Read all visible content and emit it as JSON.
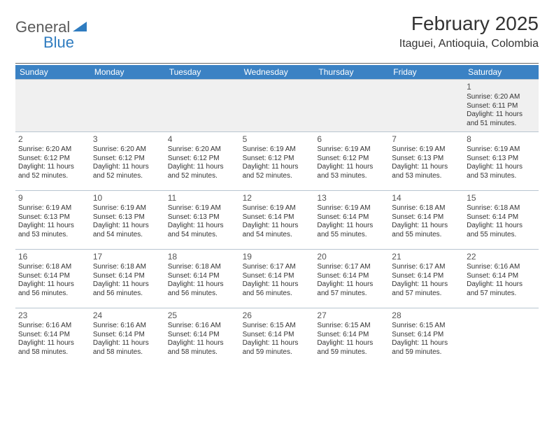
{
  "logo": {
    "general": "General",
    "blue": "Blue"
  },
  "title": {
    "month": "February 2025",
    "location": "Itaguei, Antioquia, Colombia"
  },
  "day_headers": [
    "Sunday",
    "Monday",
    "Tuesday",
    "Wednesday",
    "Thursday",
    "Friday",
    "Saturday"
  ],
  "colors": {
    "header_bg": "#3b82c4",
    "header_text": "#ffffff",
    "border": "#b8c5d0",
    "logo_gray": "#5a5a5a",
    "logo_blue": "#2f7cc0"
  },
  "weeks": [
    [
      {
        "day": "",
        "lines": []
      },
      {
        "day": "",
        "lines": []
      },
      {
        "day": "",
        "lines": []
      },
      {
        "day": "",
        "lines": []
      },
      {
        "day": "",
        "lines": []
      },
      {
        "day": "",
        "lines": []
      },
      {
        "day": "1",
        "lines": [
          "Sunrise: 6:20 AM",
          "Sunset: 6:11 PM",
          "Daylight: 11 hours",
          "and 51 minutes."
        ]
      }
    ],
    [
      {
        "day": "2",
        "lines": [
          "Sunrise: 6:20 AM",
          "Sunset: 6:12 PM",
          "Daylight: 11 hours",
          "and 52 minutes."
        ]
      },
      {
        "day": "3",
        "lines": [
          "Sunrise: 6:20 AM",
          "Sunset: 6:12 PM",
          "Daylight: 11 hours",
          "and 52 minutes."
        ]
      },
      {
        "day": "4",
        "lines": [
          "Sunrise: 6:20 AM",
          "Sunset: 6:12 PM",
          "Daylight: 11 hours",
          "and 52 minutes."
        ]
      },
      {
        "day": "5",
        "lines": [
          "Sunrise: 6:19 AM",
          "Sunset: 6:12 PM",
          "Daylight: 11 hours",
          "and 52 minutes."
        ]
      },
      {
        "day": "6",
        "lines": [
          "Sunrise: 6:19 AM",
          "Sunset: 6:12 PM",
          "Daylight: 11 hours",
          "and 53 minutes."
        ]
      },
      {
        "day": "7",
        "lines": [
          "Sunrise: 6:19 AM",
          "Sunset: 6:13 PM",
          "Daylight: 11 hours",
          "and 53 minutes."
        ]
      },
      {
        "day": "8",
        "lines": [
          "Sunrise: 6:19 AM",
          "Sunset: 6:13 PM",
          "Daylight: 11 hours",
          "and 53 minutes."
        ]
      }
    ],
    [
      {
        "day": "9",
        "lines": [
          "Sunrise: 6:19 AM",
          "Sunset: 6:13 PM",
          "Daylight: 11 hours",
          "and 53 minutes."
        ]
      },
      {
        "day": "10",
        "lines": [
          "Sunrise: 6:19 AM",
          "Sunset: 6:13 PM",
          "Daylight: 11 hours",
          "and 54 minutes."
        ]
      },
      {
        "day": "11",
        "lines": [
          "Sunrise: 6:19 AM",
          "Sunset: 6:13 PM",
          "Daylight: 11 hours",
          "and 54 minutes."
        ]
      },
      {
        "day": "12",
        "lines": [
          "Sunrise: 6:19 AM",
          "Sunset: 6:14 PM",
          "Daylight: 11 hours",
          "and 54 minutes."
        ]
      },
      {
        "day": "13",
        "lines": [
          "Sunrise: 6:19 AM",
          "Sunset: 6:14 PM",
          "Daylight: 11 hours",
          "and 55 minutes."
        ]
      },
      {
        "day": "14",
        "lines": [
          "Sunrise: 6:18 AM",
          "Sunset: 6:14 PM",
          "Daylight: 11 hours",
          "and 55 minutes."
        ]
      },
      {
        "day": "15",
        "lines": [
          "Sunrise: 6:18 AM",
          "Sunset: 6:14 PM",
          "Daylight: 11 hours",
          "and 55 minutes."
        ]
      }
    ],
    [
      {
        "day": "16",
        "lines": [
          "Sunrise: 6:18 AM",
          "Sunset: 6:14 PM",
          "Daylight: 11 hours",
          "and 56 minutes."
        ]
      },
      {
        "day": "17",
        "lines": [
          "Sunrise: 6:18 AM",
          "Sunset: 6:14 PM",
          "Daylight: 11 hours",
          "and 56 minutes."
        ]
      },
      {
        "day": "18",
        "lines": [
          "Sunrise: 6:18 AM",
          "Sunset: 6:14 PM",
          "Daylight: 11 hours",
          "and 56 minutes."
        ]
      },
      {
        "day": "19",
        "lines": [
          "Sunrise: 6:17 AM",
          "Sunset: 6:14 PM",
          "Daylight: 11 hours",
          "and 56 minutes."
        ]
      },
      {
        "day": "20",
        "lines": [
          "Sunrise: 6:17 AM",
          "Sunset: 6:14 PM",
          "Daylight: 11 hours",
          "and 57 minutes."
        ]
      },
      {
        "day": "21",
        "lines": [
          "Sunrise: 6:17 AM",
          "Sunset: 6:14 PM",
          "Daylight: 11 hours",
          "and 57 minutes."
        ]
      },
      {
        "day": "22",
        "lines": [
          "Sunrise: 6:16 AM",
          "Sunset: 6:14 PM",
          "Daylight: 11 hours",
          "and 57 minutes."
        ]
      }
    ],
    [
      {
        "day": "23",
        "lines": [
          "Sunrise: 6:16 AM",
          "Sunset: 6:14 PM",
          "Daylight: 11 hours",
          "and 58 minutes."
        ]
      },
      {
        "day": "24",
        "lines": [
          "Sunrise: 6:16 AM",
          "Sunset: 6:14 PM",
          "Daylight: 11 hours",
          "and 58 minutes."
        ]
      },
      {
        "day": "25",
        "lines": [
          "Sunrise: 6:16 AM",
          "Sunset: 6:14 PM",
          "Daylight: 11 hours",
          "and 58 minutes."
        ]
      },
      {
        "day": "26",
        "lines": [
          "Sunrise: 6:15 AM",
          "Sunset: 6:14 PM",
          "Daylight: 11 hours",
          "and 59 minutes."
        ]
      },
      {
        "day": "27",
        "lines": [
          "Sunrise: 6:15 AM",
          "Sunset: 6:14 PM",
          "Daylight: 11 hours",
          "and 59 minutes."
        ]
      },
      {
        "day": "28",
        "lines": [
          "Sunrise: 6:15 AM",
          "Sunset: 6:14 PM",
          "Daylight: 11 hours",
          "and 59 minutes."
        ]
      },
      {
        "day": "",
        "lines": []
      }
    ]
  ]
}
